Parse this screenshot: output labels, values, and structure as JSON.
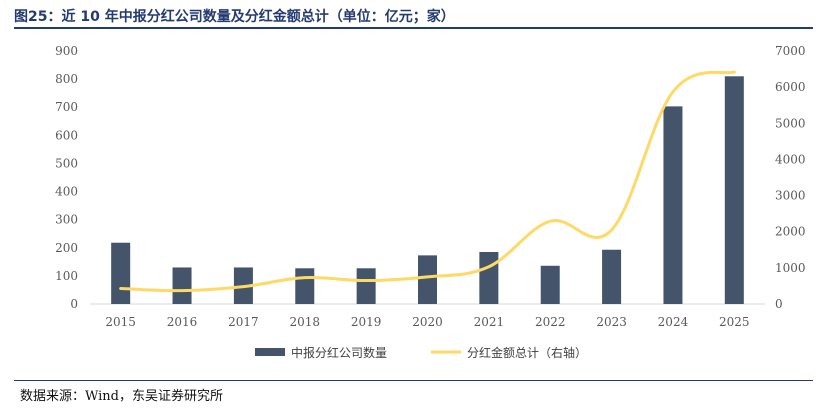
{
  "figure": {
    "title": "图25：近 10 年中报分红公司数量及分红金额总计（单位：亿元；家）",
    "source": "数据来源：Wind，东吴证券研究所"
  },
  "colors": {
    "bar": "#44546a",
    "line": "#ffd966",
    "title": "#243a73",
    "axis": "#d9d9d9",
    "tick_text": "#595959"
  },
  "chart_data": {
    "type": "bar",
    "categories": [
      "2015",
      "2016",
      "2017",
      "2018",
      "2019",
      "2020",
      "2021",
      "2022",
      "2023",
      "2024",
      "2025"
    ],
    "series": [
      {
        "name": "中报分红公司数量",
        "type": "bar",
        "axis": "left",
        "values": [
          218,
          130,
          130,
          127,
          127,
          173,
          185,
          136,
          193,
          703,
          810
        ]
      },
      {
        "name": "分红金额总计（右轴）",
        "type": "line",
        "axis": "right",
        "values": [
          430,
          370,
          480,
          730,
          650,
          750,
          1030,
          2290,
          2050,
          5870,
          6420
        ]
      }
    ],
    "ylim_left": [
      0,
      900
    ],
    "ylim_right": [
      0,
      7000
    ],
    "yticks_left": [
      "0",
      "100",
      "200",
      "300",
      "400",
      "500",
      "600",
      "700",
      "800",
      "900"
    ],
    "yticks_right": [
      "0",
      "1000",
      "2000",
      "3000",
      "4000",
      "5000",
      "6000",
      "7000"
    ],
    "legend_position": "bottom",
    "grid": false
  }
}
